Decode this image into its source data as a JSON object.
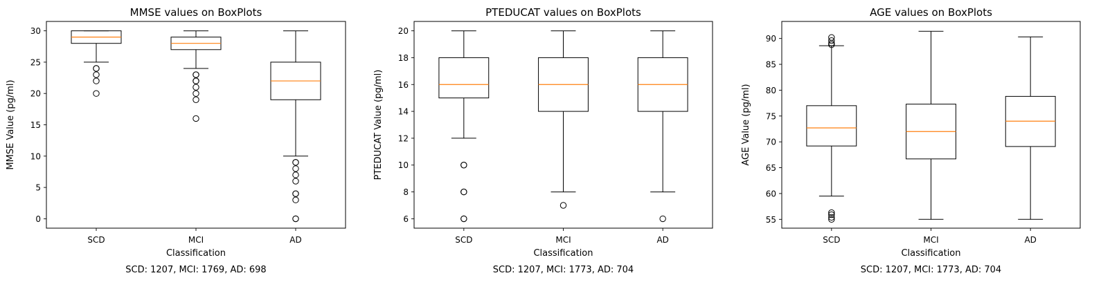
{
  "figure": {
    "colors": {
      "box": "#000000",
      "median": "#ff7f0e",
      "outlier_edge": "#000000"
    }
  },
  "chart_data": [
    {
      "type": "box",
      "title": "MMSE values on BoxPlots",
      "xlabel": "Classification",
      "ylabel": "MMSE Value (pg/ml)",
      "ylim": [
        -1.5,
        31.5
      ],
      "yticks": [
        0,
        5,
        10,
        15,
        20,
        25,
        30
      ],
      "categories": [
        "SCD",
        "MCI",
        "AD"
      ],
      "boxes": [
        {
          "name": "SCD",
          "whisker_low": 25,
          "q1": 28,
          "median": 29,
          "q3": 30,
          "whisker_high": 30,
          "outliers": [
            24,
            24,
            23,
            22,
            20
          ]
        },
        {
          "name": "MCI",
          "whisker_low": 24,
          "q1": 27,
          "median": 28,
          "q3": 29,
          "whisker_high": 30,
          "outliers": [
            23,
            23,
            22,
            22,
            21,
            20,
            19,
            16
          ]
        },
        {
          "name": "AD",
          "whisker_low": 10,
          "q1": 19,
          "median": 22,
          "q3": 25,
          "whisker_high": 30,
          "outliers": [
            9,
            9,
            8,
            7,
            6,
            4,
            4,
            3,
            0,
            0
          ]
        }
      ],
      "counts_text": "SCD: 1207, MCI: 1769, AD: 698"
    },
    {
      "type": "box",
      "title": "PTEDUCAT values on BoxPlots",
      "xlabel": "Classification",
      "ylabel": "PTEDUCAT Value (pg/ml)",
      "ylim": [
        5.3,
        20.7
      ],
      "yticks": [
        6,
        8,
        10,
        12,
        14,
        16,
        18,
        20
      ],
      "categories": [
        "SCD",
        "MCI",
        "AD"
      ],
      "boxes": [
        {
          "name": "SCD",
          "whisker_low": 12,
          "q1": 15,
          "median": 16,
          "q3": 18,
          "whisker_high": 20,
          "outliers": [
            10,
            10,
            8,
            8,
            6,
            6
          ]
        },
        {
          "name": "MCI",
          "whisker_low": 8,
          "q1": 14,
          "median": 16,
          "q3": 18,
          "whisker_high": 20,
          "outliers": [
            7
          ]
        },
        {
          "name": "AD",
          "whisker_low": 8,
          "q1": 14,
          "median": 16,
          "q3": 18,
          "whisker_high": 20,
          "outliers": [
            6
          ]
        }
      ],
      "counts_text": "SCD: 1207, MCI: 1773, AD: 704"
    },
    {
      "type": "box",
      "title": "AGE values on BoxPlots",
      "xlabel": "Classification",
      "ylabel": "AGE Value (pg/ml)",
      "ylim": [
        53.3,
        93.3
      ],
      "yticks": [
        55,
        60,
        65,
        70,
        75,
        80,
        85,
        90
      ],
      "categories": [
        "SCD",
        "MCI",
        "AD"
      ],
      "boxes": [
        {
          "name": "SCD",
          "whisker_low": 59.5,
          "q1": 69.2,
          "median": 72.7,
          "q3": 77.0,
          "whisker_high": 88.6,
          "outliers": [
            90.2,
            89.6,
            89.1,
            88.8,
            56.3,
            55.9,
            55.4,
            55.0
          ]
        },
        {
          "name": "MCI",
          "whisker_low": 55.0,
          "q1": 66.7,
          "median": 72.0,
          "q3": 77.3,
          "whisker_high": 91.4,
          "outliers": []
        },
        {
          "name": "AD",
          "whisker_low": 55.0,
          "q1": 69.1,
          "median": 74.0,
          "q3": 78.8,
          "whisker_high": 90.3,
          "outliers": []
        }
      ],
      "counts_text": "SCD: 1207, MCI: 1773, AD: 704"
    }
  ]
}
